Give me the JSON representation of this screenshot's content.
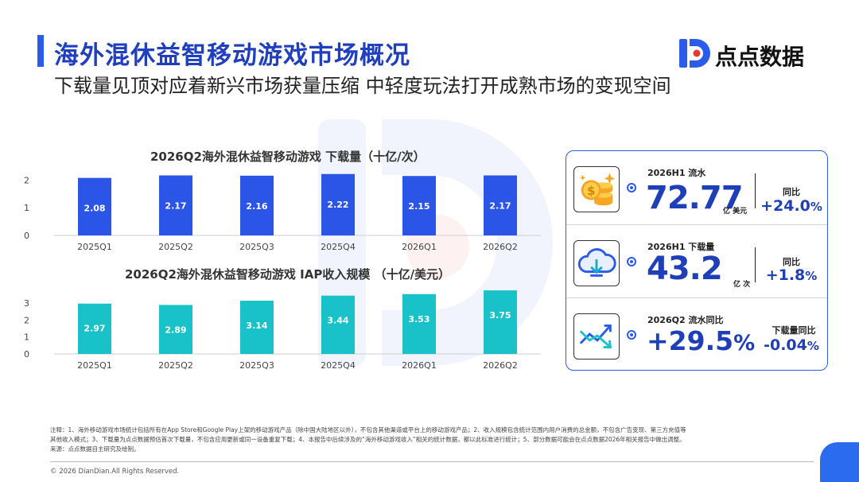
{
  "header": {
    "title": "海外混休益智移动游戏市场概况",
    "subtitle": "下载量见顶对应着新兴市场获量压缩 中轻度玩法打开成熟市场的变现空间"
  },
  "brand": {
    "name": "点点数据",
    "logo_icon": "diandian-d-logo",
    "color": "#2a5bea"
  },
  "chart_data": [
    {
      "type": "bar",
      "title": "2026Q2海外混休益智移动游戏 下载量（十亿/次）",
      "categories": [
        "2025Q1",
        "2025Q2",
        "2025Q3",
        "2025Q4",
        "2026Q1",
        "2026Q2"
      ],
      "values": [
        2.08,
        2.17,
        2.16,
        2.22,
        2.15,
        2.17
      ],
      "value_labels": [
        "2.08",
        "2.17",
        "2.16",
        "2.22",
        "2.15",
        "2.17"
      ],
      "yticks": [
        "0",
        "1",
        "2"
      ],
      "ylim": [
        0,
        2.3
      ],
      "color": "#2a55e6",
      "grid": false,
      "xlabel": "",
      "ylabel": ""
    },
    {
      "type": "bar",
      "title": "2026Q2海外混休益智移动游戏 IAP收入规模 （十亿/美元）",
      "categories": [
        "2025Q1",
        "2025Q2",
        "2025Q3",
        "2025Q4",
        "2026Q1",
        "2026Q2"
      ],
      "values": [
        2.97,
        2.89,
        3.14,
        3.44,
        3.53,
        3.75
      ],
      "value_labels": [
        "2.97",
        "2.89",
        "3.14",
        "3.44",
        "3.53",
        "3.75"
      ],
      "yticks": [
        "0",
        "1",
        "2",
        "3"
      ],
      "ylim": [
        0,
        3.8
      ],
      "color": "#19c2c9",
      "grid": false,
      "xlabel": "",
      "ylabel": ""
    }
  ],
  "stats": [
    {
      "icon": "coins-icon",
      "label": "2026H1 流水",
      "value": "72.77",
      "unit": "亿 美元",
      "sublabel": "同比",
      "subvalue_main": "+24.0",
      "subvalue_pct": "%"
    },
    {
      "icon": "cloud-download-icon",
      "label": "2026H1 下载量",
      "value": "43.2",
      "unit": "亿 次",
      "sublabel": "同比",
      "subvalue_main": "+1.8",
      "subvalue_pct": "%"
    },
    {
      "icon": "trend-arrows-icon",
      "label": "2026Q2 流水同比",
      "value_main": "+29.5",
      "value_pct": "%",
      "sublabel": "下载量同比",
      "subvalue_main": "-0.04",
      "subvalue_pct": "%"
    }
  ],
  "notes": {
    "line1": "注释：1、海外移动游戏市场统计包括所有在App Store和Google Play上架的移动游戏产品（除中国大陆地区以外），不包含其他渠道或平台上的移动游戏产品；2、收入规模包含统计范围内用户消费的总金额，不包含广告变现、第三方充值等",
    "line2": "其他收入模式；3、下载量为点点数据预估首次下载量，不包含应用更新或同一设备重复下载；4、本报告中后续涉及的“海外移动游戏收入”相关的统计数据，都以此标准进行统计；5、部分数据可能会在点点数据2026年相关报告中做出调整。",
    "line3": "来源：点点数据自主研究及绘制。"
  },
  "footer": {
    "copyright": "© 2026 DianDian.All Rights Reserved."
  }
}
